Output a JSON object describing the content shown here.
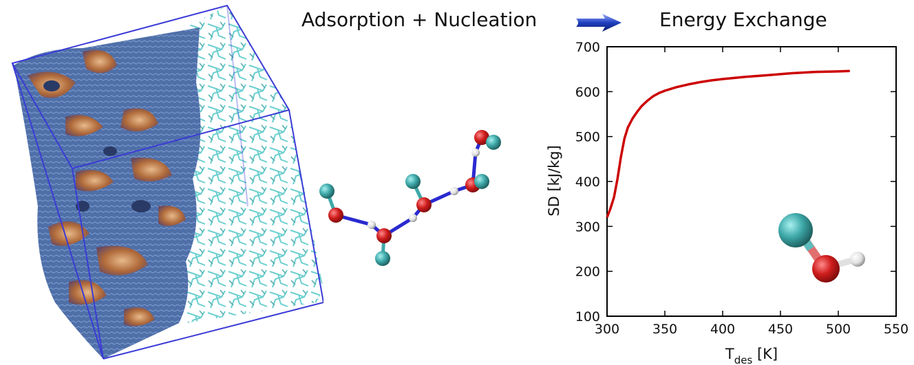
{
  "header": {
    "left_title": "Adsorption + Nucleation",
    "right_title": "Energy Exchange"
  },
  "colors": {
    "curve": "#cc0000",
    "arrow": "#1f3fbf",
    "box_edge": "#3b3bd6",
    "surface_blue": "#4f6fa8",
    "surface_copper": "#b06a3a",
    "framework_cyan": "#6ccfcf",
    "atom_cyan": "#3fa9a9",
    "atom_red": "#d01d1d",
    "atom_white": "#e8e8e8",
    "bond_blue": "#2a2ad0"
  },
  "chart_data": {
    "type": "line",
    "title": "",
    "xlabel_main": "T",
    "xlabel_sub": "des",
    "xlabel_unit": " [K]",
    "ylabel": "SD [kJ/kg]",
    "xlim": [
      300,
      550
    ],
    "ylim": [
      100,
      700
    ],
    "xticks": [
      300,
      350,
      400,
      450,
      500,
      550
    ],
    "yticks": [
      100,
      200,
      300,
      400,
      500,
      600,
      700
    ],
    "grid": false,
    "legend": "none",
    "series": [
      {
        "values_x": [
          300,
          303,
          306,
          309,
          312,
          315,
          318,
          322,
          326,
          330,
          335,
          340,
          345,
          350,
          360,
          370,
          380,
          390,
          400,
          420,
          440,
          460,
          480,
          500,
          510
        ],
        "values_y": [
          320,
          340,
          365,
          405,
          455,
          495,
          520,
          540,
          555,
          568,
          580,
          590,
          597,
          602,
          610,
          616,
          621,
          625,
          628,
          633,
          637,
          641,
          644,
          645,
          646
        ]
      }
    ]
  }
}
